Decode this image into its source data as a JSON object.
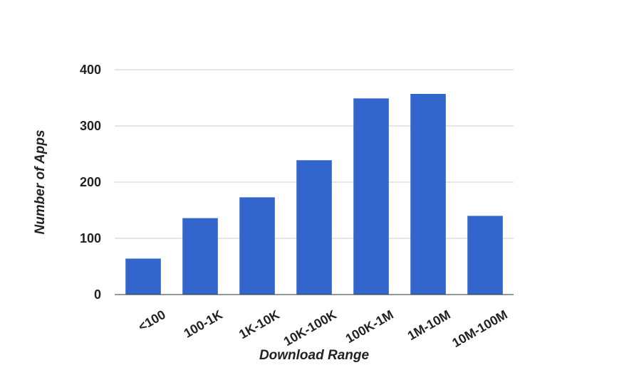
{
  "chart_data": {
    "type": "bar",
    "title": "",
    "xlabel": "Download Range",
    "ylabel": "Number of Apps",
    "categories": [
      "<100",
      "100-1K",
      "1K-10K",
      "10K-100K",
      "100K-1M",
      "1M-10M",
      "10M-100M"
    ],
    "values": [
      64,
      136,
      173,
      239,
      349,
      357,
      140
    ],
    "ylim": [
      0,
      400
    ],
    "yticks": [
      "0",
      "100",
      "200",
      "300",
      "400"
    ],
    "grid": true,
    "legend": "none",
    "bar_color": "#3366cc",
    "grid_color": "#cccccc"
  }
}
